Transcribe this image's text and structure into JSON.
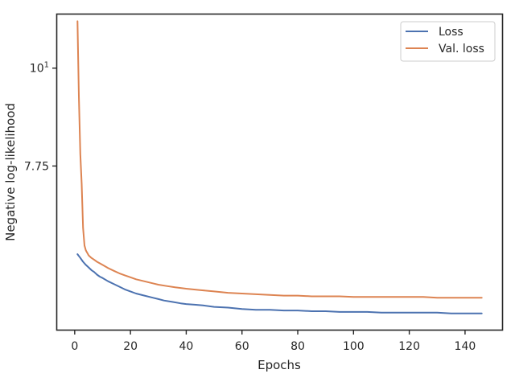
{
  "chart_data": {
    "type": "line",
    "xlabel": "Epochs",
    "ylabel": "Negative log-likelihood",
    "y_scale": "log",
    "xlim": [
      -6.3,
      153.3
    ],
    "ylim": [
      5.06,
      11.5
    ],
    "x_ticks": [
      0,
      20,
      40,
      60,
      80,
      100,
      120,
      140
    ],
    "x_tick_labels": [
      "0",
      "20",
      "40",
      "60",
      "80",
      "100",
      "120",
      "140"
    ],
    "y_ticks": [
      7.75,
      10
    ],
    "y_tick_labels": [
      "7.75",
      "10"
    ],
    "legend_position": "top-right",
    "grid": false,
    "series": [
      {
        "name": "Loss",
        "color": "#4c72b0",
        "x": [
          1,
          2,
          3,
          4,
          5,
          6,
          7,
          8,
          9,
          10,
          12,
          14,
          16,
          18,
          20,
          22,
          25,
          28,
          30,
          32,
          35,
          38,
          40,
          43,
          46,
          50,
          55,
          60,
          65,
          70,
          75,
          80,
          85,
          90,
          95,
          100,
          105,
          110,
          115,
          120,
          125,
          130,
          135,
          140,
          146
        ],
        "values": [
          6.16,
          6.1,
          6.04,
          5.99,
          5.95,
          5.91,
          5.88,
          5.84,
          5.81,
          5.79,
          5.74,
          5.7,
          5.66,
          5.62,
          5.59,
          5.56,
          5.53,
          5.5,
          5.48,
          5.46,
          5.44,
          5.42,
          5.41,
          5.4,
          5.39,
          5.37,
          5.36,
          5.34,
          5.33,
          5.33,
          5.32,
          5.32,
          5.31,
          5.31,
          5.3,
          5.3,
          5.3,
          5.29,
          5.29,
          5.29,
          5.29,
          5.29,
          5.28,
          5.28,
          5.28
        ]
      },
      {
        "name": "Val. loss",
        "color": "#dd8452",
        "x": [
          1,
          1.5,
          2,
          2.5,
          3,
          3.5,
          4,
          5,
          6,
          7,
          8,
          10,
          12,
          14,
          16,
          18,
          20,
          22,
          25,
          28,
          30,
          33,
          36,
          40,
          45,
          50,
          55,
          60,
          65,
          70,
          75,
          80,
          85,
          90,
          95,
          100,
          105,
          110,
          115,
          120,
          125,
          130,
          135,
          140,
          146
        ],
        "values": [
          11.3,
          9.3,
          8.0,
          7.4,
          6.6,
          6.3,
          6.22,
          6.14,
          6.1,
          6.07,
          6.04,
          5.99,
          5.94,
          5.9,
          5.86,
          5.83,
          5.8,
          5.77,
          5.74,
          5.71,
          5.69,
          5.67,
          5.65,
          5.63,
          5.61,
          5.59,
          5.57,
          5.56,
          5.55,
          5.54,
          5.53,
          5.53,
          5.52,
          5.52,
          5.52,
          5.51,
          5.51,
          5.51,
          5.51,
          5.51,
          5.51,
          5.5,
          5.5,
          5.5,
          5.5
        ]
      }
    ]
  }
}
